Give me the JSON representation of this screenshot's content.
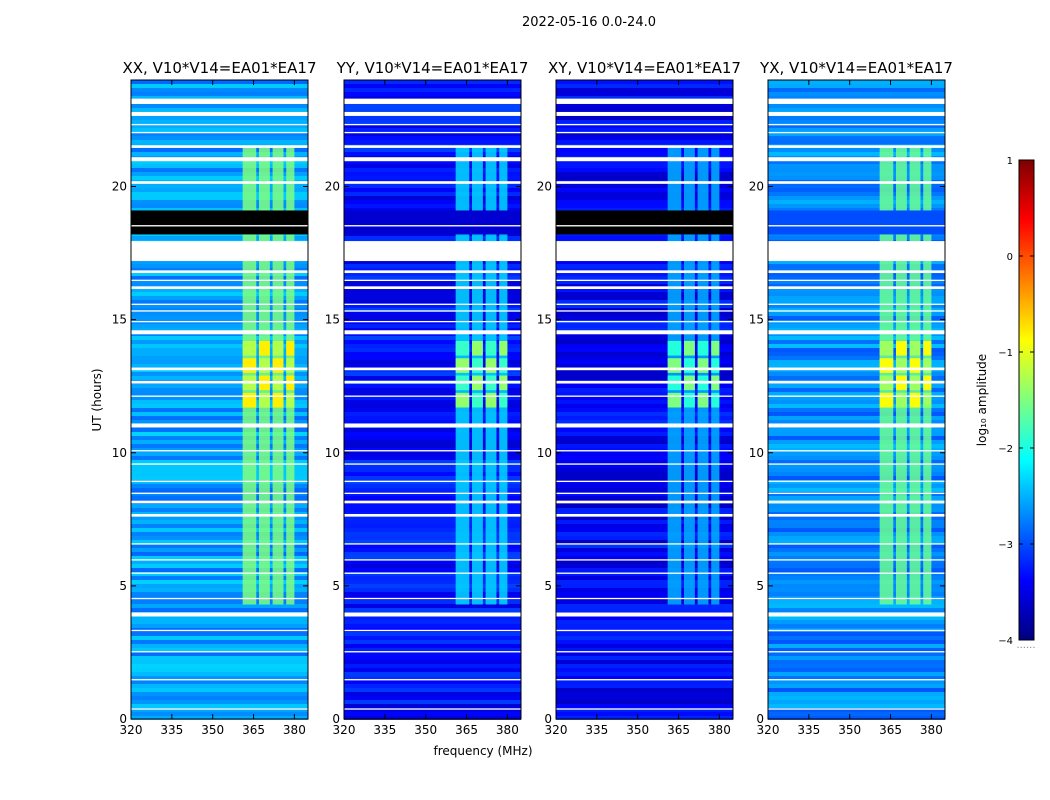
{
  "figure": {
    "suptitle": "2022-05-16 0.0-24.0",
    "ylabel": "UT (hours)",
    "xlabel": "frequency (MHz)",
    "colorbar_label": "log₁₀ amplitude",
    "colorbar_footer": "......"
  },
  "colors": {
    "flag_white": "#ffffff",
    "colormap": [
      "#00007f",
      "#0000ff",
      "#007fff",
      "#00ffff",
      "#7fff7f",
      "#ffff00",
      "#ff7f00",
      "#ff0000",
      "#7f0000"
    ]
  },
  "chart_data": {
    "type": "heatmap",
    "xlim": [
      320,
      385
    ],
    "ylim": [
      0,
      24
    ],
    "xticks": [
      320,
      335,
      350,
      365,
      380
    ],
    "xtick_labels": [
      "320",
      "335",
      "350",
      "365",
      "380"
    ],
    "yticks": [
      0,
      5,
      10,
      15,
      20
    ],
    "ytick_labels": [
      "0",
      "5",
      "10",
      "15",
      "20"
    ],
    "colorbar": {
      "range": [
        -4,
        1
      ],
      "ticks": [
        1,
        0,
        -1,
        -2,
        -3,
        -4
      ],
      "tick_labels": [
        "1",
        "0",
        "−1",
        "−2",
        "−3",
        "−4"
      ]
    },
    "rfi_bands_mhz": [
      [
        361,
        366
      ],
      [
        367,
        371
      ],
      [
        372,
        376
      ],
      [
        377,
        380
      ]
    ],
    "strong_rfi_hours": [
      11.7,
      14.1
    ],
    "flagged_time_ranges_hours": [
      [
        0.35,
        0.4
      ],
      [
        1.45,
        1.5
      ],
      [
        2.5,
        2.55
      ],
      [
        3.3,
        3.35
      ],
      [
        3.85,
        4.0
      ],
      [
        4.5,
        4.55
      ],
      [
        5.45,
        5.5
      ],
      [
        5.95,
        6.0
      ],
      [
        6.55,
        6.6
      ],
      [
        7.6,
        7.7
      ],
      [
        8.1,
        8.2
      ],
      [
        8.45,
        8.5
      ],
      [
        8.9,
        8.95
      ],
      [
        9.55,
        9.6
      ],
      [
        10.05,
        10.1
      ],
      [
        10.95,
        11.1
      ],
      [
        12.1,
        12.15
      ],
      [
        12.6,
        12.7
      ],
      [
        13.1,
        13.2
      ],
      [
        14.45,
        14.6
      ],
      [
        14.9,
        14.95
      ],
      [
        15.3,
        15.35
      ],
      [
        15.55,
        15.6
      ],
      [
        16.15,
        16.25
      ],
      [
        16.45,
        16.5
      ],
      [
        16.75,
        16.85
      ],
      [
        17.2,
        17.95
      ],
      [
        18.5,
        18.55
      ],
      [
        20.1,
        20.2
      ],
      [
        20.95,
        21.1
      ],
      [
        21.45,
        21.55
      ],
      [
        22.0,
        22.05
      ],
      [
        22.3,
        22.35
      ],
      [
        22.65,
        22.8
      ],
      [
        23.1,
        23.3
      ]
    ],
    "no_data_hours": [
      18.2,
      19.1
    ],
    "panels": [
      {
        "title": "XX, V10*V14=EA01*EA17",
        "base_level": -2.6,
        "rfi_level": -1.5,
        "strong_level": -0.8,
        "dark_block": true
      },
      {
        "title": "YY, V10*V14=EA01*EA17",
        "base_level": -3.3,
        "rfi_level": -2.3,
        "strong_level": -1.4,
        "dark_block": false
      },
      {
        "title": "XY, V10*V14=EA01*EA17",
        "base_level": -3.4,
        "rfi_level": -2.5,
        "strong_level": -1.5,
        "dark_block": true
      },
      {
        "title": "YX, V10*V14=EA01*EA17",
        "base_level": -2.7,
        "rfi_level": -1.6,
        "strong_level": -0.9,
        "dark_block": false
      }
    ]
  }
}
